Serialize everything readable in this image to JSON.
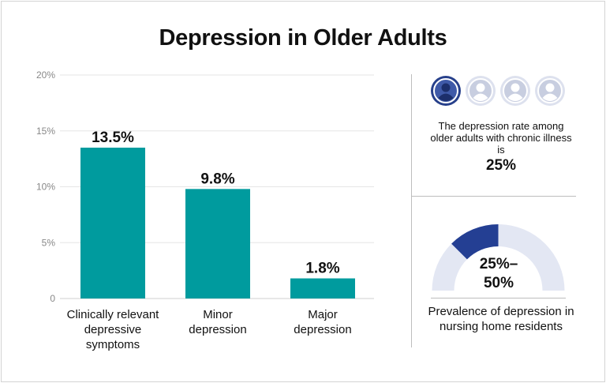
{
  "title": "Depression in Older Adults",
  "chart_data": {
    "type": "bar",
    "categories": [
      "Clinically relevant depressive symptoms",
      "Minor depression",
      "Major depression"
    ],
    "category_lines": [
      [
        "Clinically relevant",
        "depressive",
        "symptoms"
      ],
      [
        "Minor",
        "depression"
      ],
      [
        "Major",
        "depression"
      ]
    ],
    "values": [
      13.5,
      9.8,
      1.8
    ],
    "data_labels": [
      "13.5%",
      "9.8%",
      "1.8%"
    ],
    "ylim": [
      0,
      20
    ],
    "yticks": [
      0,
      5,
      10,
      15,
      20
    ],
    "ytick_labels": [
      "0",
      "5%",
      "10%",
      "15%",
      "20%"
    ],
    "grid": true,
    "bar_color": "#009b9e"
  },
  "side_stat_1": {
    "text": "The depression rate among older adults with chronic illness is",
    "value": "25%",
    "fraction": 0.25,
    "filled_color": "#27408b",
    "empty_color": "#dde1ee"
  },
  "side_stat_2": {
    "value_line1": "25%–",
    "value_line2": "50%",
    "caption": "Prevalence of depression in nursing home residents",
    "highlight_range": [
      0.25,
      0.5
    ],
    "highlight_color": "#243f93",
    "track_color": "#e3e7f3"
  }
}
